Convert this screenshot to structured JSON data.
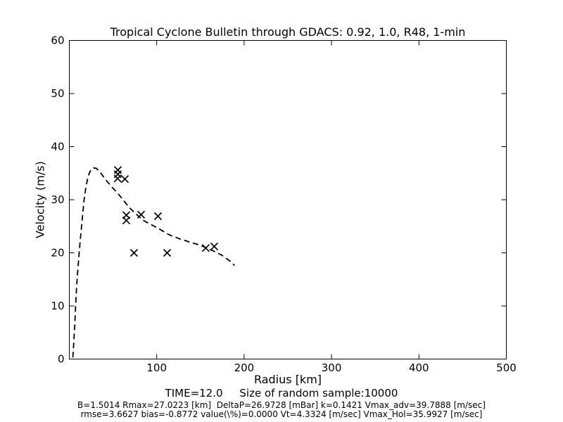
{
  "title": "Tropical Cyclone Bulletin through GDACS: 0.92, 1.0, R48, 1-min",
  "axes": {
    "xlabel": "Radius [km]",
    "ylabel": "Velocity (m/s)"
  },
  "footer": {
    "time_line": "TIME=12.0     Size of random sample:10000",
    "stats_line1": "B=1.5014 Rmax=27.0223 [km]  DeltaP=26.9728 [mBar] k=0.1421 Vmax_adv=39.7888 [m/sec]",
    "stats_line2": "rmse=3.6627 bias=-0.8772 value(\\%)=0.0000 Vt=4.3324 [m/sec] Vmax_Hol=35.9927 [m/sec]"
  },
  "chart_data": {
    "type": "line",
    "title": "Tropical Cyclone Bulletin through GDACS: 0.92, 1.0, R48, 1-min",
    "xlabel": "Radius [km]",
    "ylabel": "Velocity (m/s)",
    "xlim": [
      0,
      500
    ],
    "ylim": [
      0,
      60
    ],
    "xticks": [
      100,
      200,
      300,
      400,
      500
    ],
    "yticks": [
      0,
      10,
      20,
      30,
      40,
      50,
      60
    ],
    "grid": false,
    "legend": "none",
    "colors": {
      "line": "#000000",
      "marker": "#000000",
      "text": "#000000",
      "background": "#ffffff"
    },
    "series": [
      {
        "name": "Holland wind profile (dashed)",
        "type": "line",
        "linestyle": "dashed",
        "points": [
          [
            4,
            0.3
          ],
          [
            4.5,
            1.5
          ],
          [
            5,
            2.8
          ],
          [
            5.5,
            4.3
          ],
          [
            6.2,
            6.2
          ],
          [
            7.2,
            10
          ],
          [
            8.2,
            13.2
          ],
          [
            9.3,
            16
          ],
          [
            10.3,
            18
          ],
          [
            11.3,
            20
          ],
          [
            12.6,
            22.5
          ],
          [
            14,
            25
          ],
          [
            15.5,
            27.7
          ],
          [
            16.9,
            30
          ],
          [
            19,
            32.4
          ],
          [
            21,
            34
          ],
          [
            23,
            35.1
          ],
          [
            25.5,
            35.8
          ],
          [
            28,
            36
          ],
          [
            31,
            35.9
          ],
          [
            34,
            35.4
          ],
          [
            37,
            34.8
          ],
          [
            40.5,
            34
          ],
          [
            43.5,
            33.4
          ],
          [
            47,
            32.7
          ],
          [
            51,
            32
          ],
          [
            55,
            31.3
          ],
          [
            58,
            30.7
          ],
          [
            63,
            29.7
          ],
          [
            67.6,
            28.7
          ],
          [
            72,
            28
          ],
          [
            75.7,
            27.4
          ],
          [
            80,
            26.8
          ],
          [
            83.7,
            26.2
          ],
          [
            88,
            25.8
          ],
          [
            92.6,
            25.4
          ],
          [
            99.8,
            24.8
          ],
          [
            106,
            24.2
          ],
          [
            111.9,
            23.6
          ],
          [
            117,
            23.2
          ],
          [
            122.3,
            22.9
          ],
          [
            127,
            22.6
          ],
          [
            132.8,
            22.3
          ],
          [
            140,
            21.9
          ],
          [
            146.5,
            21.6
          ],
          [
            153,
            21.2
          ],
          [
            160,
            20.7
          ],
          [
            167,
            20.2
          ],
          [
            174,
            19.6
          ],
          [
            181,
            18.8
          ],
          [
            185,
            18.3
          ],
          [
            189,
            17.6
          ]
        ]
      },
      {
        "name": "Sampled wind observations",
        "type": "scatter",
        "marker": "x",
        "points": [
          [
            55.5,
            35.6
          ],
          [
            55.5,
            34.8
          ],
          [
            55.3,
            34.0
          ],
          [
            63.6,
            33.9
          ],
          [
            65.2,
            27.1
          ],
          [
            65.2,
            26.1
          ],
          [
            82.1,
            27.2
          ],
          [
            101.4,
            26.9
          ],
          [
            74.0,
            20.0
          ],
          [
            111.9,
            20.0
          ],
          [
            156.1,
            20.9
          ],
          [
            165.8,
            21.2
          ]
        ]
      }
    ],
    "parameters": {
      "TIME": 12.0,
      "random_sample_size": 10000,
      "B": 1.5014,
      "Rmax_km": 27.0223,
      "DeltaP_mBar": 26.9728,
      "k": 0.1421,
      "Vmax_adv_m_s": 39.7888,
      "rmse": 3.6627,
      "bias": -0.8772,
      "value_pct": 0.0,
      "Vt_m_s": 4.3324,
      "Vmax_Hol_m_s": 35.9927
    }
  }
}
